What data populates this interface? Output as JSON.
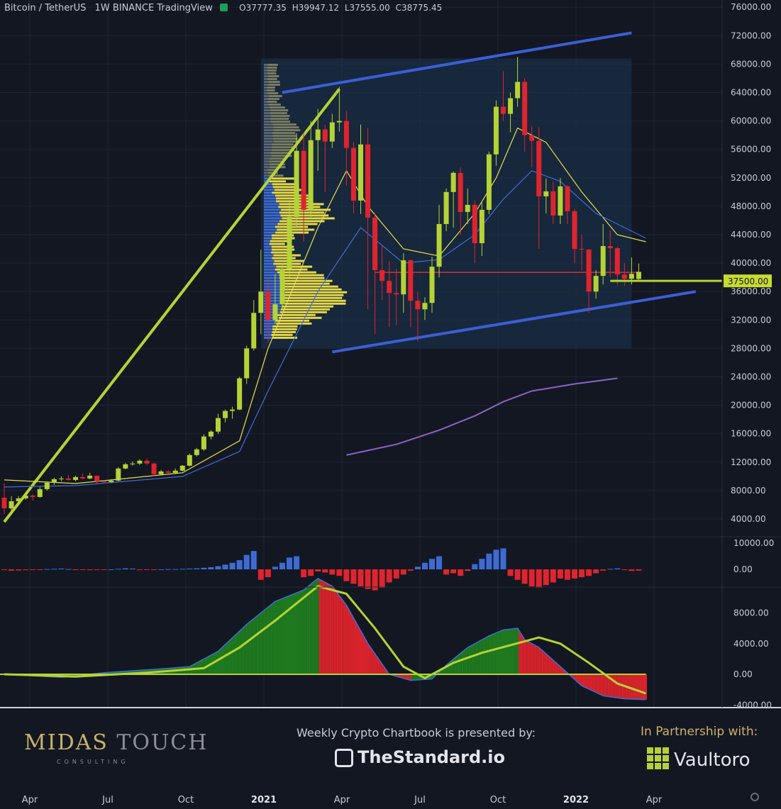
{
  "header": {
    "symbol": "Bitcoin / TetherUS",
    "interval": "1W",
    "exchange": "BINANCE",
    "platform": "TradingView",
    "open": "O37777.35",
    "high": "H39947.12",
    "low": "L37555.00",
    "close": "C38775.45"
  },
  "footer": {
    "brand_part1": "MIDAS",
    "brand_part2": "TOUCH",
    "brand_sub": "CONSULTING",
    "presented": "Weekly Crypto Chartbook is presented by:",
    "sponsor": "TheStandard.io",
    "partner_label": "In Partnership with:",
    "partner": "Vaultoro"
  },
  "colors": {
    "background": "#131722",
    "up": "#b5d334",
    "down": "#e0242e",
    "channel": "#3a5fd6",
    "trend": "#b5d334",
    "volume_blue": "#3d6bd4",
    "volume_yellow": "#e6d949",
    "hline": "#d8303a"
  },
  "chart_data": {
    "type": "candlestick",
    "price_axis": {
      "min": 0,
      "max": 76000,
      "ticks": [
        "76000.00",
        "72000.00",
        "68000.00",
        "64000.00",
        "60000.00",
        "56000.00",
        "52000.00",
        "48000.00",
        "44000.00",
        "40000.00",
        "36000.00",
        "32000.00",
        "28000.00",
        "24000.00",
        "20000.00",
        "16000.00",
        "12000.00",
        "8000.00",
        "4000.00"
      ],
      "current_label": "37500.00",
      "current_value": 37500
    },
    "time_axis": {
      "labels": [
        "Apr",
        "Jul",
        "Oct",
        "2021",
        "Apr",
        "Jul",
        "Oct",
        "2022",
        "Apr"
      ]
    },
    "candles": [
      [
        7000,
        9000,
        4700,
        5500
      ],
      [
        5500,
        7200,
        5000,
        6500
      ],
      [
        6500,
        7200,
        6200,
        6900
      ],
      [
        6900,
        7600,
        6700,
        7300
      ],
      [
        7300,
        7500,
        6600,
        7100
      ],
      [
        7100,
        8500,
        7000,
        8200
      ],
      [
        8200,
        9300,
        8000,
        9100
      ],
      [
        9100,
        9800,
        8800,
        9600
      ],
      [
        9600,
        10000,
        9300,
        9700
      ],
      [
        9700,
        10200,
        9400,
        9500
      ],
      [
        9500,
        10100,
        9300,
        9900
      ],
      [
        9900,
        10400,
        9600,
        9700
      ],
      [
        9700,
        10500,
        9600,
        10100
      ],
      [
        10100,
        9900,
        9000,
        9300
      ],
      [
        9300,
        9500,
        9000,
        9200
      ],
      [
        9200,
        9600,
        9100,
        9400
      ],
      [
        9400,
        11300,
        9300,
        11100
      ],
      [
        11100,
        11900,
        11000,
        11700
      ],
      [
        11700,
        12100,
        11500,
        11800
      ],
      [
        11800,
        12400,
        11600,
        12200
      ],
      [
        12200,
        12500,
        11600,
        11800
      ],
      [
        11800,
        11900,
        10000,
        10300
      ],
      [
        10300,
        10900,
        10200,
        10700
      ],
      [
        10700,
        10900,
        10300,
        10500
      ],
      [
        10500,
        11100,
        10400,
        10800
      ],
      [
        10800,
        11600,
        10700,
        11500
      ],
      [
        11500,
        13200,
        11400,
        13000
      ],
      [
        13000,
        14000,
        12800,
        13800
      ],
      [
        13800,
        15900,
        13600,
        15600
      ],
      [
        15600,
        16500,
        15200,
        16300
      ],
      [
        16300,
        18800,
        16000,
        18200
      ],
      [
        18200,
        19400,
        17600,
        19200
      ],
      [
        19200,
        19800,
        18100,
        19400
      ],
      [
        19400,
        24000,
        19300,
        23800
      ],
      [
        23800,
        28400,
        23000,
        28000
      ],
      [
        28000,
        34800,
        27700,
        33000
      ],
      [
        33000,
        41900,
        30000,
        36000
      ],
      [
        36000,
        38000,
        28800,
        32000
      ],
      [
        32000,
        38500,
        31500,
        34200
      ],
      [
        34200,
        40000,
        33500,
        39200
      ],
      [
        39200,
        48600,
        38000,
        46500
      ],
      [
        46500,
        58300,
        45000,
        55800
      ],
      [
        55800,
        58300,
        43000,
        47500
      ],
      [
        47500,
        60000,
        46500,
        57300
      ],
      [
        57300,
        61700,
        53000,
        58800
      ],
      [
        58800,
        59500,
        50000,
        57100
      ],
      [
        57100,
        61000,
        56200,
        59800
      ],
      [
        59800,
        64800,
        58500,
        60000
      ],
      [
        60000,
        61400,
        50900,
        56200
      ],
      [
        56200,
        57000,
        47000,
        48800
      ],
      [
        48800,
        59500,
        46900,
        56700
      ],
      [
        56700,
        59000,
        33500,
        46400
      ],
      [
        46400,
        47000,
        30000,
        39000
      ],
      [
        39000,
        42500,
        34800,
        37500
      ],
      [
        37500,
        40300,
        31000,
        35800
      ],
      [
        35800,
        39200,
        31300,
        35600
      ],
      [
        35600,
        41400,
        33000,
        40400
      ],
      [
        40400,
        40500,
        31000,
        34700
      ],
      [
        34700,
        36000,
        29000,
        33500
      ],
      [
        33500,
        35200,
        32000,
        34400
      ],
      [
        34400,
        40900,
        33000,
        39500
      ],
      [
        39500,
        48200,
        38000,
        45500
      ],
      [
        45500,
        50500,
        44500,
        50000
      ],
      [
        50000,
        52900,
        45000,
        52700
      ],
      [
        52700,
        53500,
        44000,
        47200
      ],
      [
        47200,
        50500,
        45500,
        48200
      ],
      [
        48200,
        48800,
        40000,
        42800
      ],
      [
        42800,
        48500,
        41000,
        47500
      ],
      [
        47500,
        55700,
        46900,
        55300
      ],
      [
        55300,
        62900,
        53700,
        62000
      ],
      [
        62000,
        67000,
        60000,
        61000
      ],
      [
        61000,
        64000,
        58400,
        63200
      ],
      [
        63200,
        69000,
        62000,
        65500
      ],
      [
        65500,
        66000,
        55700,
        58000
      ],
      [
        58000,
        59300,
        53500,
        57200
      ],
      [
        57200,
        59100,
        42000,
        49400
      ],
      [
        49400,
        51900,
        47000,
        50100
      ],
      [
        50100,
        51500,
        45500,
        46700
      ],
      [
        46700,
        52000,
        45500,
        50800
      ],
      [
        50800,
        51000,
        45500,
        47300
      ],
      [
        47300,
        47600,
        40000,
        42000
      ],
      [
        42000,
        44000,
        39000,
        41900
      ],
      [
        41900,
        42000,
        33000,
        36000
      ],
      [
        36000,
        39000,
        35000,
        38200
      ],
      [
        38200,
        45500,
        37000,
        42400
      ],
      [
        42400,
        44600,
        38000,
        42100
      ],
      [
        42100,
        42300,
        37000,
        38400
      ],
      [
        38400,
        40000,
        36800,
        37800
      ],
      [
        37800,
        40800,
        37000,
        38500
      ],
      [
        37777,
        39947,
        37555,
        38775
      ]
    ],
    "series": [
      {
        "key": "ema_fast",
        "values": [
          [
            0,
            9500
          ],
          [
            10,
            9000
          ],
          [
            25,
            10500
          ],
          [
            33,
            15000
          ],
          [
            37,
            28000
          ],
          [
            44,
            45000
          ],
          [
            48,
            53000
          ],
          [
            51,
            48000
          ],
          [
            56,
            42000
          ],
          [
            61,
            41000
          ],
          [
            66,
            47000
          ],
          [
            69,
            52000
          ],
          [
            72,
            59000
          ],
          [
            76,
            57000
          ],
          [
            81,
            50000
          ],
          [
            86,
            44000
          ],
          [
            90,
            43000
          ]
        ]
      },
      {
        "key": "ema_mid",
        "values": [
          [
            0,
            8500
          ],
          [
            10,
            8700
          ],
          [
            25,
            10000
          ],
          [
            33,
            13500
          ],
          [
            37,
            22000
          ],
          [
            44,
            36000
          ],
          [
            50,
            45000
          ],
          [
            56,
            40000
          ],
          [
            61,
            40500
          ],
          [
            66,
            44000
          ],
          [
            70,
            49000
          ],
          [
            74,
            53000
          ],
          [
            78,
            51500
          ],
          [
            83,
            47000
          ],
          [
            90,
            43500
          ]
        ]
      },
      {
        "key": "ema_slow",
        "values": [
          [
            48,
            13000
          ],
          [
            55,
            14500
          ],
          [
            61,
            16500
          ],
          [
            66,
            18500
          ],
          [
            70,
            20500
          ],
          [
            74,
            22000
          ],
          [
            80,
            23000
          ],
          [
            86,
            23800
          ]
        ]
      }
    ],
    "red_level": 38700,
    "channel_upper": [
      [
        39,
        64000
      ],
      [
        88,
        72400
      ]
    ],
    "channel_lower": [
      [
        46,
        27500
      ],
      [
        97,
        36000
      ]
    ],
    "trendline": [
      [
        0,
        3600
      ],
      [
        47,
        64500
      ]
    ],
    "range_box": [
      [
        36,
        68800
      ],
      [
        88,
        28000
      ]
    ],
    "macd": {
      "axis_ticks": [
        "10000.00",
        "0.00"
      ],
      "hist": [
        -200,
        -500,
        -400,
        -300,
        -200,
        -100,
        100,
        200,
        300,
        100,
        -100,
        -200,
        -300,
        -200,
        -100,
        0,
        200,
        400,
        300,
        -100,
        -200,
        -100,
        0,
        100,
        100,
        200,
        300,
        400,
        600,
        800,
        1200,
        1800,
        2500,
        3500,
        5500,
        7000,
        -4000,
        -3000,
        1000,
        2500,
        4500,
        5000,
        -3000,
        -2500,
        -800,
        -1200,
        -2000,
        -2500,
        -4500,
        -5500,
        -6500,
        -7500,
        -8000,
        -7000,
        -5000,
        -3500,
        -2000,
        -500,
        1000,
        2500,
        4000,
        5000,
        -2000,
        -1500,
        -2500,
        -600,
        2000,
        4000,
        6000,
        7500,
        8000,
        -2500,
        -4000,
        -5500,
        -6500,
        -7000,
        -6000,
        -5000,
        -3500,
        -4000,
        -3500,
        -3000,
        -2500,
        -1500,
        -500,
        200,
        400,
        -300,
        -600,
        -500
      ]
    },
    "oscillator": {
      "axis_ticks": [
        "8000.00",
        "4000.00",
        "0.00",
        "-4000.00"
      ],
      "signal": [
        [
          0,
          0
        ],
        [
          10,
          -300
        ],
        [
          20,
          200
        ],
        [
          28,
          800
        ],
        [
          33,
          3500
        ],
        [
          38,
          7000
        ],
        [
          44,
          11500
        ],
        [
          48,
          10500
        ],
        [
          52,
          6000
        ],
        [
          56,
          1000
        ],
        [
          59,
          -500
        ],
        [
          63,
          1500
        ],
        [
          67,
          2800
        ],
        [
          71,
          3800
        ],
        [
          75,
          4800
        ],
        [
          78,
          4000
        ],
        [
          82,
          1500
        ],
        [
          86,
          -1200
        ],
        [
          90,
          -2500
        ]
      ],
      "hist": [
        [
          0,
          0
        ],
        [
          8,
          -400
        ],
        [
          14,
          200
        ],
        [
          22,
          700
        ],
        [
          26,
          1000
        ],
        [
          30,
          3000
        ],
        [
          34,
          6500
        ],
        [
          38,
          9500
        ],
        [
          42,
          11000
        ],
        [
          44,
          12500
        ],
        [
          46,
          11500
        ],
        [
          48,
          9000
        ],
        [
          51,
          4000
        ],
        [
          54,
          0
        ],
        [
          57,
          -800
        ],
        [
          60,
          -600
        ],
        [
          62,
          1200
        ],
        [
          65,
          3500
        ],
        [
          68,
          5000
        ],
        [
          70,
          5800
        ],
        [
          72,
          6000
        ],
        [
          73,
          4500
        ],
        [
          75,
          3500
        ],
        [
          78,
          1000
        ],
        [
          81,
          -1500
        ],
        [
          84,
          -2800
        ],
        [
          87,
          -3200
        ],
        [
          90,
          -3300
        ]
      ],
      "hist_color_rule": "green while rising, red while falling"
    }
  }
}
